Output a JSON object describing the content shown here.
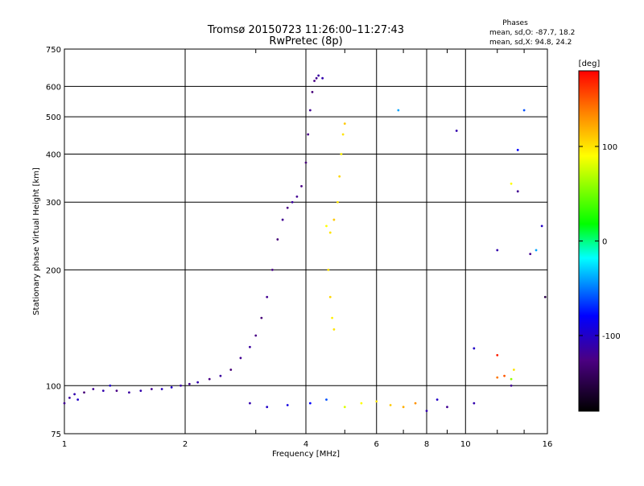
{
  "header": {
    "title_line1": "Tromsø 20150723 11:26:00–11:27:43",
    "title_line2": "RwPretec (8p)",
    "phases_title": "Phases",
    "phases_o": "mean, sd,O: -87.7, 18.2",
    "phases_x": "mean, sd,X:  94.8, 24.2"
  },
  "chart_data": {
    "type": "scatter",
    "xlabel": "Frequency [MHz]",
    "ylabel": "Stationary phase Virtual Height [km]",
    "x_scale": "log",
    "y_scale": "log",
    "xlim": [
      1,
      16
    ],
    "ylim": [
      75,
      750
    ],
    "x_ticks": [
      1,
      2,
      4,
      6,
      8,
      10,
      16
    ],
    "y_ticks": [
      75,
      100,
      200,
      300,
      400,
      500,
      600,
      750
    ],
    "grid": true,
    "colorbar": {
      "label": "[deg]",
      "range": [
        -180,
        180
      ],
      "ticks": [
        100,
        0,
        -100
      ]
    },
    "series": [
      {
        "points": [
          [
            1.0,
            90,
            -120
          ],
          [
            1.03,
            93,
            -115
          ],
          [
            1.06,
            95,
            -110
          ],
          [
            1.08,
            92,
            -100
          ],
          [
            1.12,
            96,
            -130
          ],
          [
            1.18,
            98,
            -120
          ],
          [
            1.25,
            97,
            -110
          ],
          [
            1.3,
            100,
            -100
          ],
          [
            1.35,
            97,
            -125
          ],
          [
            1.45,
            96,
            -115
          ],
          [
            1.55,
            97,
            -110
          ],
          [
            1.65,
            98,
            -120
          ],
          [
            1.75,
            98,
            -105
          ],
          [
            1.85,
            99,
            -100
          ],
          [
            1.95,
            100,
            -115
          ],
          [
            2.05,
            101,
            -120
          ],
          [
            2.15,
            102,
            -110
          ],
          [
            2.3,
            104,
            -125
          ],
          [
            2.45,
            106,
            -115
          ],
          [
            2.6,
            110,
            -130
          ],
          [
            2.75,
            118,
            -120
          ],
          [
            2.9,
            126,
            -115
          ],
          [
            3.0,
            135,
            -125
          ],
          [
            3.1,
            150,
            -130
          ],
          [
            3.2,
            170,
            -120
          ],
          [
            3.3,
            200,
            -125
          ],
          [
            3.4,
            240,
            -130
          ],
          [
            3.5,
            270,
            -120
          ],
          [
            3.6,
            290,
            -125
          ],
          [
            3.7,
            300,
            -115
          ],
          [
            3.8,
            310,
            -120
          ],
          [
            3.9,
            330,
            -125
          ],
          [
            4.0,
            380,
            -130
          ],
          [
            4.05,
            450,
            -125
          ],
          [
            4.1,
            520,
            -120
          ],
          [
            4.15,
            580,
            -130
          ],
          [
            4.2,
            620,
            -125
          ],
          [
            4.25,
            630,
            -120
          ],
          [
            4.3,
            640,
            -115
          ],
          [
            4.4,
            630,
            -110
          ],
          [
            4.5,
            260,
            90
          ],
          [
            4.6,
            250,
            100
          ],
          [
            4.7,
            270,
            110
          ],
          [
            4.8,
            300,
            100
          ],
          [
            4.85,
            350,
            105
          ],
          [
            4.9,
            400,
            95
          ],
          [
            4.95,
            450,
            100
          ],
          [
            5.0,
            480,
            110
          ],
          [
            4.55,
            200,
            100
          ],
          [
            4.6,
            170,
            105
          ],
          [
            4.65,
            150,
            95
          ],
          [
            4.7,
            140,
            100
          ],
          [
            2.9,
            90,
            -110
          ],
          [
            3.2,
            88,
            -100
          ],
          [
            3.6,
            89,
            -90
          ],
          [
            4.1,
            90,
            -80
          ],
          [
            4.5,
            92,
            -60
          ],
          [
            5.0,
            88,
            80
          ],
          [
            5.5,
            90,
            90
          ],
          [
            6.0,
            91,
            100
          ],
          [
            6.5,
            89,
            110
          ],
          [
            7.0,
            88,
            120
          ],
          [
            7.5,
            90,
            130
          ],
          [
            8.0,
            86,
            -110
          ],
          [
            8.5,
            92,
            -100
          ],
          [
            9.0,
            88,
            -120
          ],
          [
            10.5,
            90,
            -110
          ],
          [
            12.0,
            105,
            140
          ],
          [
            12.5,
            106,
            150
          ],
          [
            13.0,
            104,
            60
          ],
          [
            13.2,
            110,
            100
          ],
          [
            6.8,
            520,
            -40
          ],
          [
            9.5,
            460,
            -110
          ],
          [
            13.0,
            335,
            90
          ],
          [
            13.5,
            410,
            -80
          ],
          [
            14.0,
            520,
            -60
          ],
          [
            14.5,
            220,
            -120
          ],
          [
            15.0,
            225,
            -40
          ],
          [
            12.0,
            225,
            -110
          ],
          [
            15.5,
            260,
            -100
          ],
          [
            15.8,
            170,
            -150
          ],
          [
            10.5,
            125,
            -100
          ],
          [
            12.0,
            120,
            170
          ],
          [
            13.5,
            320,
            -120
          ],
          [
            13.0,
            100,
            -120
          ]
        ]
      }
    ]
  }
}
